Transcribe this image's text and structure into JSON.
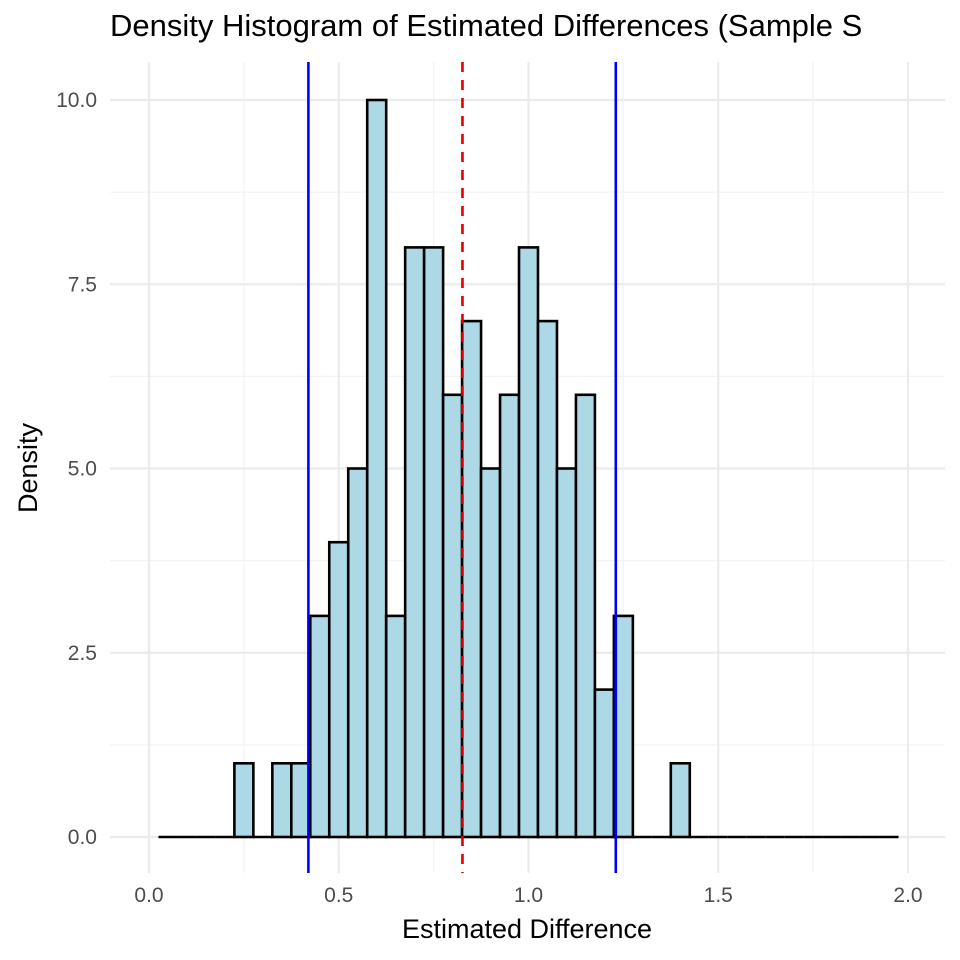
{
  "chart_data": {
    "type": "bar",
    "title": "Density Histogram of Estimated Differences (Sample S",
    "xlabel": "Estimated Difference",
    "ylabel": "Density",
    "xlim": [
      -0.05,
      2.05
    ],
    "ylim": [
      -0.4,
      10.5
    ],
    "x_ticks": [
      0.0,
      0.5,
      1.0,
      1.5,
      2.0
    ],
    "x_tick_labels": [
      "0.0",
      "0.5",
      "1.0",
      "1.5",
      "2.0"
    ],
    "y_ticks": [
      0.0,
      2.5,
      5.0,
      7.5,
      10.0
    ],
    "y_tick_labels": [
      "0.0",
      "2.5",
      "5.0",
      "7.5",
      "10.0"
    ],
    "grid": true,
    "bins": {
      "start": 0.025,
      "width": 0.05,
      "values": [
        0,
        0,
        0,
        0,
        1,
        0,
        1,
        1,
        3,
        4,
        5,
        10,
        3,
        8,
        8,
        6,
        7,
        5,
        6,
        8,
        7,
        5,
        6,
        2,
        3,
        0,
        0,
        1,
        0,
        0,
        0,
        0,
        0,
        0,
        0,
        0,
        0,
        0,
        0
      ]
    },
    "reference_lines": [
      {
        "kind": "solid",
        "color": "#0000ff",
        "x": 0.42
      },
      {
        "kind": "dashed",
        "color": "#e00000",
        "x": 0.826
      },
      {
        "kind": "solid",
        "color": "#0000ff",
        "x": 1.23
      }
    ],
    "bar_fill": "#add8e6",
    "bar_stroke": "#000000"
  }
}
